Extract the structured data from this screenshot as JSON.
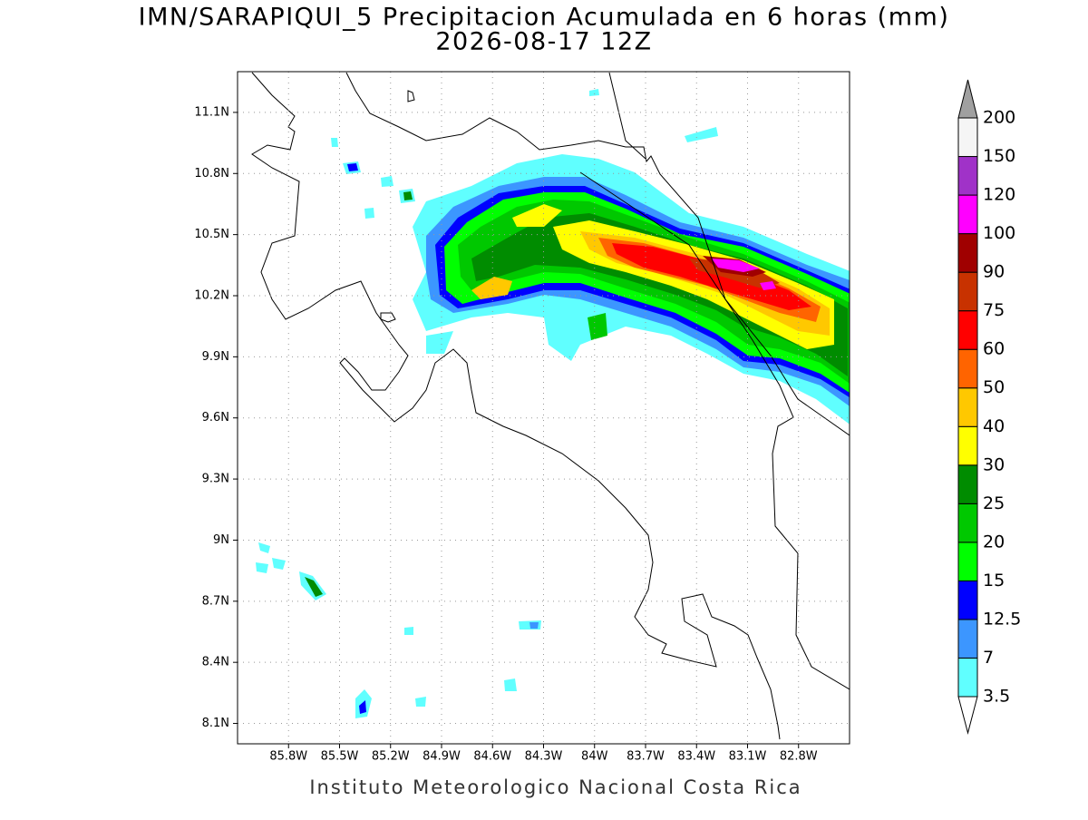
{
  "title": "IMN/SARAPIQUI_5 Precipitacion Acumulada en 6 horas (mm)",
  "subtitle": "2026-08-17 12Z",
  "lonlim": [
    -86.1,
    -82.5
  ],
  "latlim": [
    8.0,
    11.3
  ],
  "lat_ticks": [
    {
      "value": 11.1,
      "label": "11.1N"
    },
    {
      "value": 10.8,
      "label": "10.8N"
    },
    {
      "value": 10.5,
      "label": "10.5N"
    },
    {
      "value": 10.2,
      "label": "10.2N"
    },
    {
      "value": 9.9,
      "label": "9.9N"
    },
    {
      "value": 9.6,
      "label": "9.6N"
    },
    {
      "value": 9.3,
      "label": "9.3N"
    },
    {
      "value": 9,
      "label": "9N"
    },
    {
      "value": 8.7,
      "label": "8.7N"
    },
    {
      "value": 8.4,
      "label": "8.4N"
    },
    {
      "value": 8.1,
      "label": "8.1N"
    }
  ],
  "lon_ticks": [
    {
      "value": -85.8,
      "label": "85.8W"
    },
    {
      "value": -85.5,
      "label": "85.5W"
    },
    {
      "value": -85.2,
      "label": "85.2W"
    },
    {
      "value": -84.9,
      "label": "84.9W"
    },
    {
      "value": -84.6,
      "label": "84.6W"
    },
    {
      "value": -84.3,
      "label": "84.3W"
    },
    {
      "value": -84,
      "label": "84W"
    },
    {
      "value": -83.7,
      "label": "83.7W"
    },
    {
      "value": -83.4,
      "label": "83.4W"
    },
    {
      "value": -83.1,
      "label": "83.1W"
    },
    {
      "value": -82.8,
      "label": "82.8W"
    }
  ],
  "grid": true,
  "colorbar": {
    "levels": [
      3.5,
      7,
      12.5,
      15,
      20,
      25,
      30,
      40,
      50,
      60,
      75,
      90,
      100,
      120,
      150,
      200
    ],
    "colors": [
      "#ffffff",
      "#60ffff",
      "#3c96ff",
      "#0000ff",
      "#00ff00",
      "#00c800",
      "#008c00",
      "#ffff00",
      "#ffc800",
      "#ff6400",
      "#ff0000",
      "#c83200",
      "#a00000",
      "#ff00ff",
      "#a032c8",
      "#f5f5f5",
      "#a0a0a0"
    ]
  },
  "footer": "Instituto Meteorologico Nacional Costa Rica"
}
